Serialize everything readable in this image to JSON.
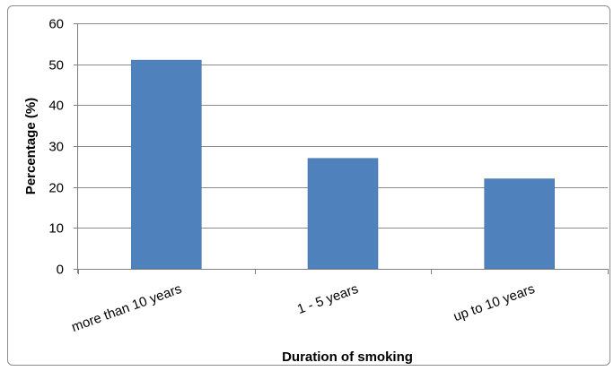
{
  "chart_data": {
    "type": "bar",
    "title": "",
    "xlabel": "Duration of smoking",
    "ylabel": "Percentage (%)",
    "categories": [
      "more than 10 years",
      "1 - 5 years",
      "up to 10 years"
    ],
    "values": [
      51,
      27,
      22
    ],
    "ylim": [
      0,
      60
    ],
    "yticks": [
      0,
      10,
      20,
      30,
      40,
      50,
      60
    ],
    "grid": true,
    "legend": "none",
    "bar_color": "#4f81bd",
    "bar_edge_color": "#3c6ea5",
    "gridline_color": "#8c8c8c"
  }
}
